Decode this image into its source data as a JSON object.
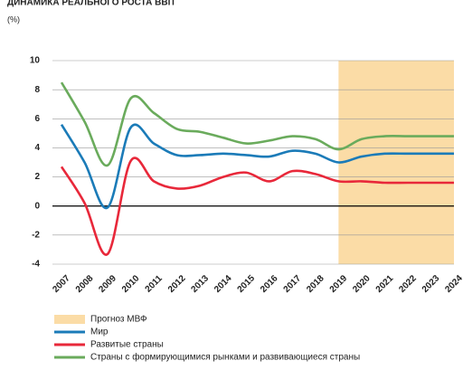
{
  "chart_data": {
    "type": "line",
    "title": "ДИНАМИКА РЕАЛЬНОГО РОСТА ВВП",
    "y_label": "(%)",
    "categories": [
      "2007",
      "2008",
      "2009",
      "2010",
      "2011",
      "2012",
      "2013",
      "2014",
      "2015",
      "2016",
      "2017",
      "2018",
      "2019",
      "2020",
      "2021",
      "2022",
      "2023",
      "2024"
    ],
    "series": [
      {
        "name": "Мир",
        "color": "#1b7bb8",
        "values": [
          5.6,
          3.0,
          -0.1,
          5.4,
          4.3,
          3.5,
          3.5,
          3.6,
          3.5,
          3.4,
          3.8,
          3.6,
          3.0,
          3.4,
          3.6,
          3.6,
          3.6,
          3.6
        ]
      },
      {
        "name": "Развитые страны",
        "color": "#e8283a",
        "values": [
          2.7,
          0.2,
          -3.3,
          3.1,
          1.7,
          1.2,
          1.4,
          2.0,
          2.3,
          1.7,
          2.4,
          2.2,
          1.7,
          1.7,
          1.6,
          1.6,
          1.6,
          1.6
        ]
      },
      {
        "name": "Страны с формирующимися рынками и развивающиеся страны",
        "color": "#6aab5c",
        "values": [
          8.5,
          5.8,
          2.8,
          7.4,
          6.4,
          5.3,
          5.1,
          4.7,
          4.3,
          4.5,
          4.8,
          4.6,
          3.9,
          4.6,
          4.8,
          4.8,
          4.8,
          4.8
        ]
      }
    ],
    "forecast": {
      "label": "Прогноз МВФ",
      "start": 12,
      "color": "#fbdca6"
    },
    "ylim": [
      -4,
      10
    ],
    "yticks": [
      -4,
      -2,
      0,
      2,
      4,
      6,
      8,
      10
    ],
    "grid": true
  }
}
